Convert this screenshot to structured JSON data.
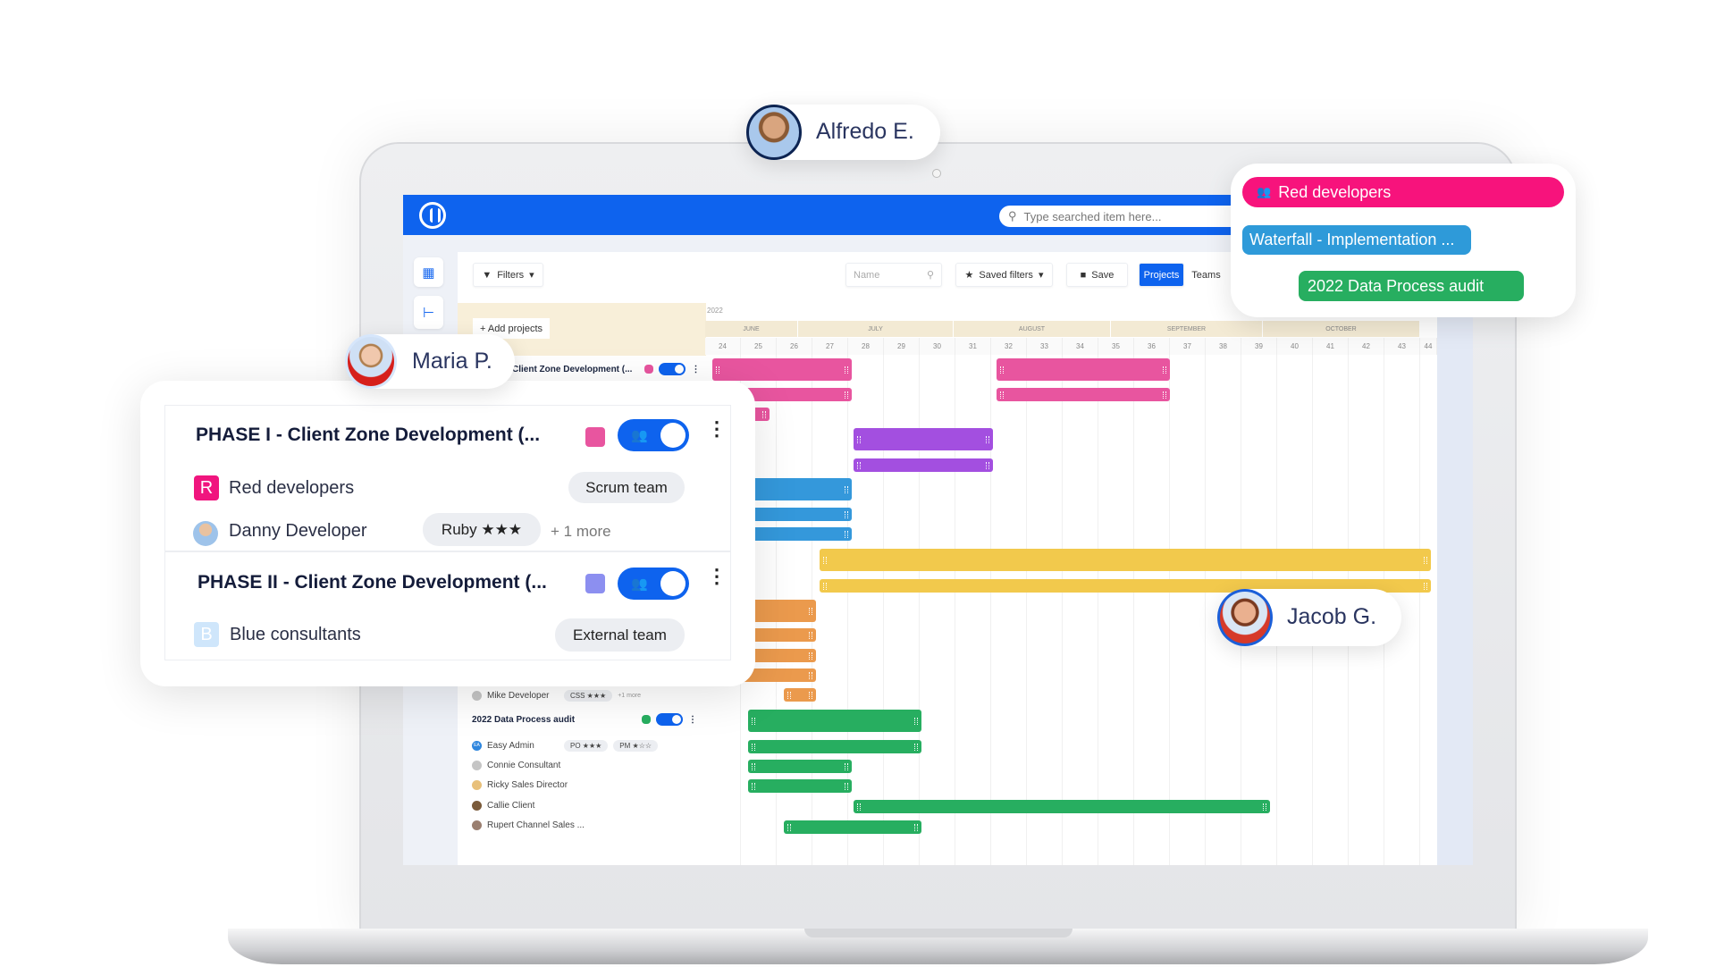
{
  "app": {
    "search_placeholder": "Type searched item here...",
    "toolbar": {
      "filters": "Filters",
      "name_placeholder": "Name",
      "saved_filters": "Saved filters",
      "save": "Save",
      "tab_projects": "Projects",
      "tab_teams": "Teams"
    },
    "add_projects": "+ Add projects",
    "year": "2022",
    "accent": "#0e63ee"
  },
  "timeline": {
    "months": [
      {
        "label": "JUNE",
        "from": 24,
        "to": 26.6
      },
      {
        "label": "JULY",
        "from": 26.6,
        "to": 30.95
      },
      {
        "label": "AUGUST",
        "from": 30.95,
        "to": 35.35
      },
      {
        "label": "SEPTEMBER",
        "from": 35.35,
        "to": 39.6
      },
      {
        "label": "OCTOBER",
        "from": 39.6,
        "to": 44
      }
    ],
    "weeks": [
      "24",
      "25",
      "26",
      "27",
      "28",
      "29",
      "30",
      "31",
      "32",
      "33",
      "34",
      "35",
      "36",
      "37",
      "38",
      "39",
      "40",
      "41",
      "42",
      "43",
      "44"
    ],
    "rows": [
      {
        "kind": "project",
        "bars": [
          {
            "start": 24.2,
            "end": 28.1,
            "color": "#e8559f"
          },
          {
            "start": 32.15,
            "end": 37,
            "color": "#e8559f"
          }
        ]
      },
      {
        "kind": "member",
        "bars": [
          {
            "start": 24.2,
            "end": 28.1,
            "color": "#e8559f"
          },
          {
            "start": 32.15,
            "end": 37,
            "color": "#e8559f"
          }
        ]
      },
      {
        "kind": "member",
        "bars": [
          {
            "start": 24.2,
            "end": 25.8,
            "color": "#e8559f"
          }
        ]
      },
      {
        "kind": "project",
        "bars": [
          {
            "start": 28.15,
            "end": 32.05,
            "color": "#a34fe0"
          }
        ]
      },
      {
        "kind": "member",
        "bars": [
          {
            "start": 28.15,
            "end": 32.05,
            "color": "#a34fe0"
          }
        ]
      },
      {
        "kind": "project",
        "bars": [
          {
            "start": 24.2,
            "end": 28.1,
            "color": "#3498db"
          }
        ]
      },
      {
        "kind": "member",
        "bars": [
          {
            "start": 24.2,
            "end": 28.1,
            "color": "#3498db"
          }
        ]
      },
      {
        "kind": "member",
        "bars": [
          {
            "start": 24.2,
            "end": 28.1,
            "color": "#3498db"
          }
        ]
      },
      {
        "kind": "project",
        "bars": [
          {
            "start": 27.2,
            "end": 44.3,
            "color": "#f2c94c"
          }
        ]
      },
      {
        "kind": "member",
        "bars": [
          {
            "start": 27.2,
            "end": 44.3,
            "color": "#f2c94c"
          }
        ]
      },
      {
        "kind": "project",
        "bars": [
          {
            "start": 24.2,
            "end": 27.1,
            "color": "#eb9a4d"
          }
        ]
      },
      {
        "kind": "member",
        "bars": [
          {
            "start": 24.2,
            "end": 27.1,
            "color": "#eb9a4d"
          }
        ]
      },
      {
        "kind": "member",
        "bars": [
          {
            "start": 24.2,
            "end": 27.1,
            "color": "#eb9a4d"
          }
        ]
      },
      {
        "kind": "member",
        "bars": [
          {
            "start": 24.2,
            "end": 27.1,
            "color": "#eb9a4d"
          }
        ]
      },
      {
        "kind": "member",
        "bars": [
          {
            "start": 26.2,
            "end": 27.1,
            "color": "#eb9a4d"
          }
        ]
      },
      {
        "kind": "project",
        "bars": [
          {
            "start": 25.2,
            "end": 30.05,
            "color": "#27ae60"
          }
        ]
      },
      {
        "kind": "member",
        "bars": [
          {
            "start": 25.2,
            "end": 30.05,
            "color": "#27ae60"
          }
        ]
      },
      {
        "kind": "member",
        "bars": [
          {
            "start": 25.2,
            "end": 28.1,
            "color": "#27ae60"
          }
        ]
      },
      {
        "kind": "member",
        "bars": [
          {
            "start": 25.2,
            "end": 28.1,
            "color": "#27ae60"
          }
        ]
      },
      {
        "kind": "member",
        "bars": [
          {
            "start": 28.15,
            "end": 39.8,
            "color": "#27ae60"
          }
        ]
      },
      {
        "kind": "member",
        "bars": [
          {
            "start": 26.2,
            "end": 30.05,
            "color": "#27ae60"
          }
        ]
      }
    ]
  },
  "list": {
    "row1_title": "Client Zone Development (...",
    "mike": {
      "name": "Mike Developer",
      "skill": "CSS ★★★",
      "more": "+1 more"
    },
    "audit": {
      "title": "2022 Data Process audit",
      "color": "#27ae60"
    },
    "easy": {
      "name": "Easy Admin",
      "initials": "EA",
      "skills": [
        "PO ★★★",
        "PM ★☆☆"
      ]
    },
    "members": [
      "Connie Consultant",
      "Ricky Sales Director",
      "Callie Client",
      "Rupert Channel Sales ..."
    ]
  },
  "card": {
    "phase1": {
      "title": "PHASE I - Client Zone Development (...",
      "color": "#e8559f",
      "team": {
        "badge": "R",
        "name": "Red developers",
        "type": "Scrum team",
        "color": "#f0157e"
      },
      "member": {
        "name": "Danny Developer",
        "skill": "Ruby ★★★",
        "more": "+ 1 more"
      }
    },
    "phase2": {
      "title": "PHASE II - Client Zone Development (...",
      "color": "#8c8ff0",
      "team": {
        "badge": "B",
        "name": "Blue consultants",
        "type": "External team",
        "color": "#cfe6fb"
      }
    }
  },
  "people": {
    "alfredo": "Alfredo E.",
    "maria": "Maria P.",
    "jacob": "Jacob G."
  },
  "popup": {
    "red": {
      "label": "Red developers",
      "color": "#f7137c"
    },
    "waterfall": {
      "label": "Waterfall - Implementation ...",
      "color": "#2e9ad9"
    },
    "audit": {
      "label": "2022 Data Process audit",
      "color": "#27ae60"
    }
  }
}
